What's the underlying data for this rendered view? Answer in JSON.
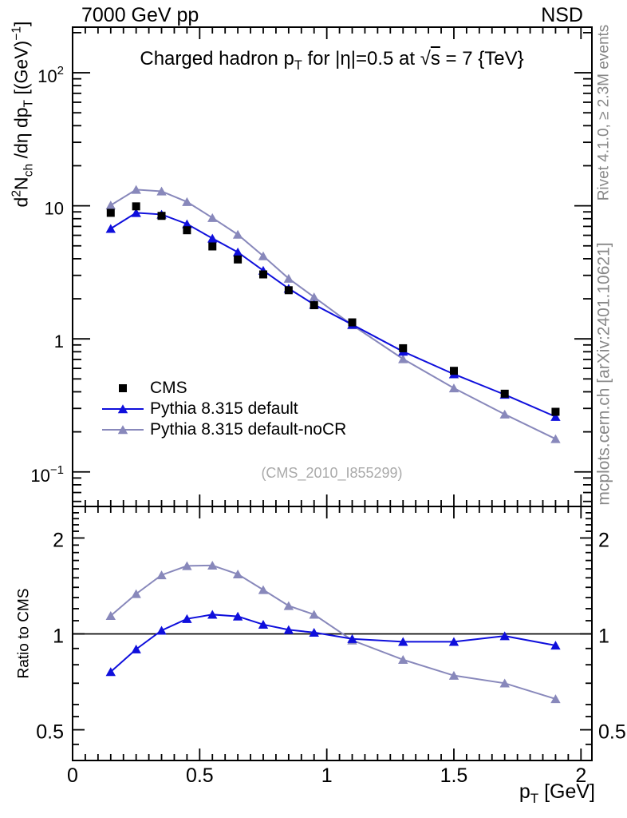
{
  "header": {
    "left": "7000 GeV pp",
    "right": "NSD"
  },
  "title_segments": [
    {
      "t": "Charged hadron p"
    },
    {
      "t": "T",
      "sub": true
    },
    {
      "t": " for |η|=0.5 at "
    },
    {
      "t": "√"
    },
    {
      "t": "s",
      "ov": true
    },
    {
      "t": " = 7 {TeV}"
    }
  ],
  "watermark": "(CMS_2010_I855299)",
  "side_notes": {
    "top": "Rivet 4.1.0, ≥ 2.3M events",
    "bottom": "mcplots.cern.ch [arXiv:2401.10621]"
  },
  "chart_data": {
    "type": "line",
    "title": "Charged hadron pT for |η|=0.5 at √s = 7 {TeV}",
    "x": [
      0.15,
      0.25,
      0.35,
      0.45,
      0.55,
      0.65,
      0.75,
      0.85,
      0.95,
      1.1,
      1.3,
      1.5,
      1.7,
      1.9
    ],
    "series": [
      {
        "name": "CMS",
        "role": "data",
        "marker": "square",
        "line": false,
        "color": "#000000",
        "values": [
          8.85,
          9.9,
          8.4,
          6.55,
          4.95,
          3.95,
          3.05,
          2.32,
          1.79,
          1.33,
          0.85,
          0.575,
          0.387,
          0.283
        ]
      },
      {
        "name": "Pythia 8.315 default",
        "role": "mc",
        "marker": "triangle",
        "line": true,
        "color": "#0f0fdc",
        "values": [
          6.73,
          8.86,
          8.61,
          7.3,
          5.69,
          4.48,
          3.26,
          2.39,
          1.81,
          1.28,
          0.803,
          0.543,
          0.381,
          0.26
        ],
        "ratio": [
          0.76,
          0.895,
          1.025,
          1.115,
          1.15,
          1.135,
          1.07,
          1.03,
          1.01,
          0.965,
          0.945,
          0.945,
          0.985,
          0.92
        ]
      },
      {
        "name": "Pythia 8.315 default-noCR",
        "role": "mc",
        "marker": "triangle",
        "line": true,
        "color": "#8888bb",
        "values": [
          10.09,
          13.22,
          12.85,
          10.71,
          8.12,
          6.08,
          4.19,
          2.84,
          2.06,
          1.27,
          0.706,
          0.426,
          0.271,
          0.177
        ],
        "ratio": [
          1.14,
          1.335,
          1.53,
          1.635,
          1.64,
          1.54,
          1.375,
          1.225,
          1.15,
          0.955,
          0.83,
          0.74,
          0.7,
          0.625
        ]
      }
    ],
    "axes": {
      "x": {
        "label": "pT [GeV]",
        "label_segments": [
          {
            "t": "p"
          },
          {
            "t": "T",
            "sub": true
          },
          {
            "t": " [GeV]"
          }
        ],
        "range": [
          0,
          2.043
        ],
        "major_ticks": [
          0,
          0.5,
          1,
          1.5,
          2
        ],
        "major_labels": [
          "0",
          "0.5",
          "1",
          "1.5",
          "2"
        ],
        "minor_step": 0.05
      },
      "y_main": {
        "label": "d2Nch/dη dpT [(GeV)-1]",
        "label_segments": [
          {
            "t": "d"
          },
          {
            "t": "2",
            "sup": true
          },
          {
            "t": "N"
          },
          {
            "t": "ch",
            "sub": true
          },
          {
            "t": " /dη  dp"
          },
          {
            "t": "T",
            "sub": true
          },
          {
            "t": "  [(GeV)"
          },
          {
            "t": "−1",
            "sup": true
          },
          {
            "t": "]"
          }
        ],
        "scale": "log",
        "range": [
          0.055,
          220
        ],
        "major_ticks": [
          0.1,
          1,
          10,
          100
        ],
        "major_labels": [
          {
            "m": "10",
            "sup": "−1"
          },
          {
            "m": "1"
          },
          {
            "m": "10"
          },
          {
            "m": "10",
            "sup": "2"
          }
        ]
      },
      "y_ratio": {
        "label": "Ratio to CMS",
        "scale": "log",
        "range": [
          0.4005,
          2.512
        ],
        "major_ticks": [
          0.5,
          1,
          2
        ],
        "major_labels": [
          "0.5",
          "1",
          "2"
        ],
        "minor_ticks": [
          0.45,
          0.55,
          0.6,
          0.7,
          0.8,
          0.9,
          1.1,
          1.2,
          1.3,
          1.4,
          1.5,
          1.6,
          1.7,
          1.8,
          1.9,
          2.1,
          2.2,
          2.3,
          2.4
        ],
        "reference_line": 1
      }
    },
    "legend": [
      "CMS",
      "Pythia 8.315 default",
      "Pythia 8.315 default-noCR"
    ]
  }
}
